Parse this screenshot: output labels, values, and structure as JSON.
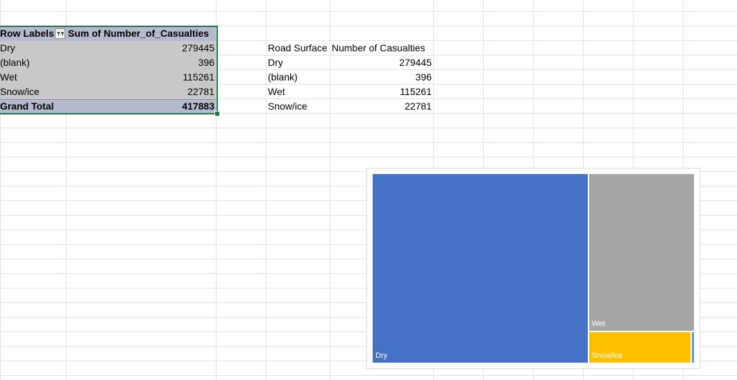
{
  "pivot": {
    "header_row_labels": "Row Labels",
    "header_sum": "Sum of Number_of_Casualties",
    "rows": [
      {
        "label": "Dry",
        "value": "279445"
      },
      {
        "label": "(blank)",
        "value": "396"
      },
      {
        "label": "Wet",
        "value": "115261"
      },
      {
        "label": "Snow/ice",
        "value": "22781"
      }
    ],
    "total_label": "Grand Total",
    "total_value": "417883"
  },
  "table": {
    "header_surface": "Road Surface",
    "header_casualties": "Number of Casualties",
    "rows": [
      {
        "label": "Dry",
        "value": "279445"
      },
      {
        "label": "(blank)",
        "value": "396"
      },
      {
        "label": "Wet",
        "value": "115261"
      },
      {
        "label": "Snow/ice",
        "value": "22781"
      }
    ]
  },
  "icons": {
    "filter": "filter-dropdown-icon"
  },
  "chart_data": {
    "type": "treemap",
    "title": "",
    "items": [
      {
        "name": "Dry",
        "value": 279445,
        "color": "#4472c4"
      },
      {
        "name": "Wet",
        "value": 115261,
        "color": "#a5a5a5"
      },
      {
        "name": "Snow/ice",
        "value": 22781,
        "color": "#ffc000"
      },
      {
        "name": "(blank)",
        "value": 396,
        "color": "#5b9bd5"
      }
    ]
  }
}
